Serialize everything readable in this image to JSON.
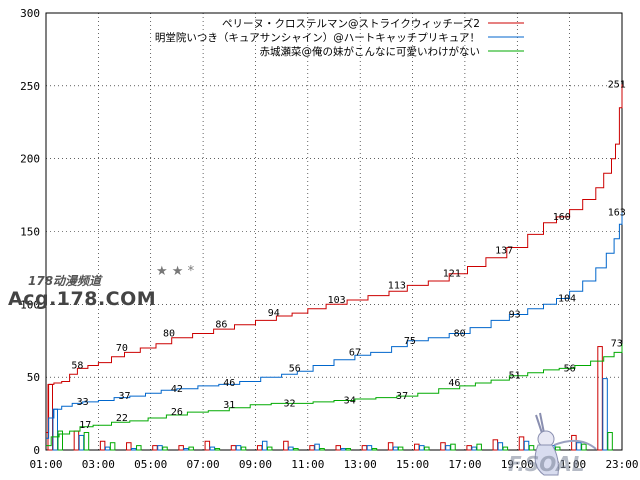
{
  "chart_data": {
    "type": "line",
    "x_start_hour": 1,
    "x_end_hour": 23,
    "xlim": [
      1,
      23
    ],
    "ylim": [
      0,
      300
    ],
    "y_ticks": [
      0,
      50,
      100,
      150,
      200,
      250,
      300
    ],
    "x_ticks": [
      "01:00",
      "03:00",
      "05:00",
      "07:00",
      "09:00",
      "11:00",
      "13:00",
      "15:00",
      "17:00",
      "19:00",
      "21:00",
      "23:00"
    ],
    "grid": true,
    "legend_position": "top-right",
    "series": [
      {
        "name": "ペリーヌ・クロステルマン@ストライクウィッチーズ2",
        "color": "#cc0000",
        "points": [
          [
            1.0,
            12
          ],
          [
            1.1,
            45
          ],
          [
            1.3,
            46
          ],
          [
            1.6,
            47
          ],
          [
            1.9,
            52
          ],
          [
            2.2,
            56
          ],
          [
            2.6,
            58
          ],
          [
            3.0,
            60
          ],
          [
            3.5,
            64
          ],
          [
            4.0,
            67
          ],
          [
            4.6,
            70
          ],
          [
            5.2,
            73
          ],
          [
            5.8,
            77
          ],
          [
            6.6,
            80
          ],
          [
            7.4,
            83
          ],
          [
            8.2,
            86
          ],
          [
            9.0,
            89
          ],
          [
            9.8,
            92
          ],
          [
            10.4,
            94
          ],
          [
            11.0,
            97
          ],
          [
            11.7,
            100
          ],
          [
            12.5,
            103
          ],
          [
            13.3,
            106
          ],
          [
            14.1,
            109
          ],
          [
            14.8,
            113
          ],
          [
            15.6,
            116
          ],
          [
            16.4,
            121
          ],
          [
            17.1,
            126
          ],
          [
            17.8,
            132
          ],
          [
            18.6,
            139
          ],
          [
            19.4,
            148
          ],
          [
            20.0,
            156
          ],
          [
            20.5,
            160
          ],
          [
            21.0,
            165
          ],
          [
            21.5,
            172
          ],
          [
            22.0,
            180
          ],
          [
            22.3,
            190
          ],
          [
            22.6,
            200
          ],
          [
            22.75,
            210
          ],
          [
            22.9,
            235
          ],
          [
            23.0,
            251
          ]
        ],
        "labels": [
          [
            2.2,
            58
          ],
          [
            3.9,
            70
          ],
          [
            5.7,
            80
          ],
          [
            7.7,
            86
          ],
          [
            9.7,
            94
          ],
          [
            12.1,
            103
          ],
          [
            14.4,
            113
          ],
          [
            16.5,
            121
          ],
          [
            18.5,
            137
          ],
          [
            20.7,
            160
          ],
          [
            22.8,
            251
          ]
        ]
      },
      {
        "name": "明堂院いつき（キュアサンシャイン）@ハートキャッチプリキュア！",
        "color": "#0066cc",
        "points": [
          [
            1.0,
            8
          ],
          [
            1.1,
            22
          ],
          [
            1.3,
            28
          ],
          [
            1.6,
            30
          ],
          [
            2.0,
            32
          ],
          [
            2.4,
            33
          ],
          [
            3.0,
            34
          ],
          [
            3.6,
            36
          ],
          [
            4.2,
            37
          ],
          [
            4.8,
            39
          ],
          [
            5.4,
            41
          ],
          [
            6.0,
            42
          ],
          [
            6.8,
            44
          ],
          [
            7.6,
            45
          ],
          [
            8.4,
            47
          ],
          [
            9.2,
            50
          ],
          [
            10.0,
            52
          ],
          [
            10.6,
            54
          ],
          [
            11.2,
            58
          ],
          [
            12.0,
            62
          ],
          [
            12.8,
            65
          ],
          [
            13.4,
            67
          ],
          [
            14.2,
            71
          ],
          [
            14.8,
            75
          ],
          [
            15.6,
            77
          ],
          [
            16.4,
            80
          ],
          [
            17.2,
            84
          ],
          [
            18.0,
            89
          ],
          [
            18.7,
            93
          ],
          [
            19.4,
            97
          ],
          [
            20.0,
            100
          ],
          [
            20.5,
            104
          ],
          [
            21.0,
            109
          ],
          [
            21.5,
            116
          ],
          [
            22.0,
            125
          ],
          [
            22.4,
            135
          ],
          [
            22.7,
            145
          ],
          [
            22.9,
            155
          ],
          [
            23.0,
            163
          ]
        ],
        "labels": [
          [
            2.4,
            33
          ],
          [
            4.0,
            37
          ],
          [
            6.0,
            42
          ],
          [
            8.0,
            46
          ],
          [
            10.5,
            56
          ],
          [
            12.8,
            67
          ],
          [
            14.9,
            75
          ],
          [
            16.8,
            80
          ],
          [
            18.9,
            93
          ],
          [
            20.9,
            104
          ],
          [
            22.8,
            163
          ]
        ]
      },
      {
        "name": "赤城瀬菜@俺の妹がこんなに可愛いわけがない",
        "color": "#00aa00",
        "points": [
          [
            1.0,
            3
          ],
          [
            1.2,
            9
          ],
          [
            1.5,
            11
          ],
          [
            1.9,
            13
          ],
          [
            2.3,
            16
          ],
          [
            2.8,
            17
          ],
          [
            3.5,
            19
          ],
          [
            4.2,
            20
          ],
          [
            4.9,
            22
          ],
          [
            5.6,
            24
          ],
          [
            6.4,
            26
          ],
          [
            7.2,
            27
          ],
          [
            8.0,
            29
          ],
          [
            8.8,
            31
          ],
          [
            9.6,
            32
          ],
          [
            10.4,
            32
          ],
          [
            11.2,
            33
          ],
          [
            12.0,
            34
          ],
          [
            12.8,
            35
          ],
          [
            13.6,
            36
          ],
          [
            14.4,
            37
          ],
          [
            15.2,
            39
          ],
          [
            16.0,
            42
          ],
          [
            16.8,
            44
          ],
          [
            17.4,
            46
          ],
          [
            18.0,
            48
          ],
          [
            18.7,
            51
          ],
          [
            19.4,
            53
          ],
          [
            20.0,
            55
          ],
          [
            20.6,
            56
          ],
          [
            21.2,
            58
          ],
          [
            21.8,
            61
          ],
          [
            22.3,
            64
          ],
          [
            22.7,
            67
          ],
          [
            23.0,
            73
          ]
        ],
        "labels": [
          [
            2.5,
            17
          ],
          [
            3.9,
            22
          ],
          [
            6.0,
            26
          ],
          [
            8.0,
            31
          ],
          [
            10.3,
            32
          ],
          [
            12.6,
            34
          ],
          [
            14.6,
            37
          ],
          [
            16.6,
            46
          ],
          [
            18.9,
            51
          ],
          [
            21.0,
            56
          ],
          [
            22.8,
            73
          ]
        ]
      }
    ],
    "hourly_bars": [
      {
        "hour": 1,
        "red": 45,
        "blue": 28,
        "green": 13
      },
      {
        "hour": 2,
        "red": 13,
        "blue": 10,
        "green": 12
      },
      {
        "hour": 3,
        "red": 6,
        "blue": 2,
        "green": 5
      },
      {
        "hour": 4,
        "red": 5,
        "blue": 1,
        "green": 3
      },
      {
        "hour": 5,
        "red": 3,
        "blue": 3,
        "green": 2
      },
      {
        "hour": 6,
        "red": 3,
        "blue": 1,
        "green": 2
      },
      {
        "hour": 7,
        "red": 6,
        "blue": 2,
        "green": 1
      },
      {
        "hour": 8,
        "red": 3,
        "blue": 3,
        "green": 2
      },
      {
        "hour": 9,
        "red": 3,
        "blue": 6,
        "green": 2
      },
      {
        "hour": 10,
        "red": 6,
        "blue": 2,
        "green": 1
      },
      {
        "hour": 11,
        "red": 3,
        "blue": 4,
        "green": 1
      },
      {
        "hour": 12,
        "red": 3,
        "blue": 1,
        "green": 1
      },
      {
        "hour": 13,
        "red": 3,
        "blue": 3,
        "green": 1
      },
      {
        "hour": 14,
        "red": 5,
        "blue": 2,
        "green": 2
      },
      {
        "hour": 15,
        "red": 4,
        "blue": 3,
        "green": 2
      },
      {
        "hour": 16,
        "red": 5,
        "blue": 3,
        "green": 4
      },
      {
        "hour": 17,
        "red": 3,
        "blue": 2,
        "green": 4
      },
      {
        "hour": 18,
        "red": 7,
        "blue": 5,
        "green": 2
      },
      {
        "hour": 19,
        "red": 9,
        "blue": 6,
        "green": 3
      },
      {
        "hour": 20,
        "red": 5,
        "blue": 3,
        "green": 2
      },
      {
        "hour": 21,
        "red": 10,
        "blue": 5,
        "green": 4
      },
      {
        "hour": 22,
        "red": 71,
        "blue": 49,
        "green": 12
      },
      {
        "hour": 23,
        "red": 5,
        "blue": 5,
        "green": 3
      }
    ]
  },
  "watermark": {
    "line1": "178动漫频道",
    "line2": "Acg.178.COM",
    "stars": "★ ★ *"
  },
  "corner_logo": {
    "text": "F.SOAL"
  }
}
